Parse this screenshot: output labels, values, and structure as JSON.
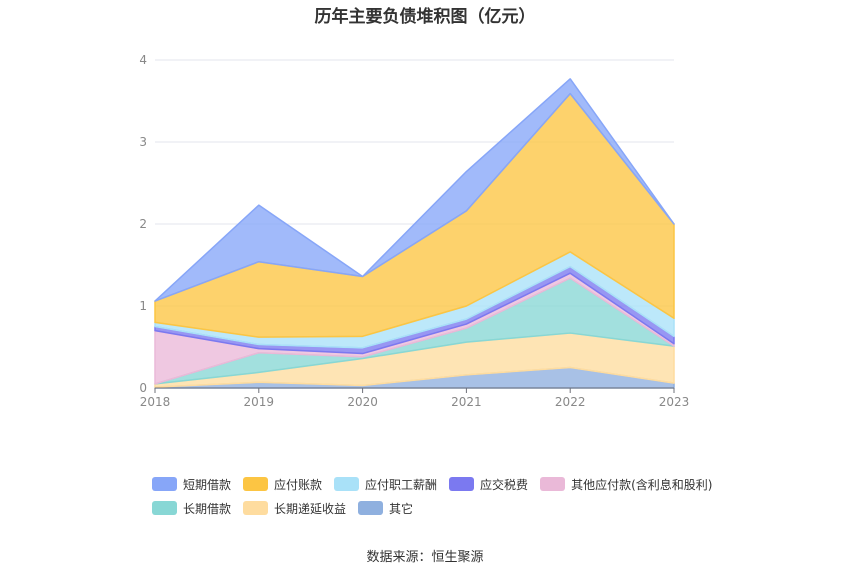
{
  "chart_data": {
    "type": "area",
    "stacked": true,
    "title": "历年主要负债堆积图（亿元）",
    "categories": [
      "2018",
      "2019",
      "2020",
      "2021",
      "2022",
      "2023"
    ],
    "ylim": [
      0,
      4
    ],
    "yticks": [
      "0",
      "1",
      "2",
      "3",
      "4"
    ],
    "grid": true,
    "legend_position": "bottom",
    "series": [
      {
        "name": "其它",
        "color": "#8fb0df",
        "values": [
          0.01,
          0.07,
          0.03,
          0.16,
          0.25,
          0.06
        ]
      },
      {
        "name": "长期递延收益",
        "color": "#fedc9f",
        "values": [
          0.04,
          0.12,
          0.33,
          0.4,
          0.42,
          0.45
        ]
      },
      {
        "name": "长期借款",
        "color": "#88d7d5",
        "values": [
          0.0,
          0.24,
          0.02,
          0.17,
          0.67,
          0.0
        ]
      },
      {
        "name": "其他应付款(含利息和股利)",
        "color": "#eab9d8",
        "values": [
          0.65,
          0.05,
          0.04,
          0.05,
          0.06,
          0.03
        ]
      },
      {
        "name": "应交税费",
        "color": "#7b79f0",
        "values": [
          0.05,
          0.05,
          0.07,
          0.06,
          0.08,
          0.09
        ]
      },
      {
        "name": "应付职工薪酬",
        "color": "#a9e1f8",
        "values": [
          0.05,
          0.09,
          0.14,
          0.16,
          0.18,
          0.22
        ]
      },
      {
        "name": "应付账款",
        "color": "#fcc543",
        "values": [
          0.26,
          0.92,
          0.73,
          1.16,
          1.93,
          1.15
        ]
      },
      {
        "name": "短期借款",
        "color": "#87a6f8",
        "values": [
          0.0,
          0.69,
          0.0,
          0.48,
          0.18,
          0.0
        ]
      }
    ]
  },
  "legend_rows": [
    [
      "短期借款",
      "应付账款",
      "应付职工薪酬",
      "应交税费",
      "其他应付款(含利息和股利)"
    ],
    [
      "长期借款",
      "长期递延收益",
      "其它"
    ]
  ],
  "legend_colors": {
    "短期借款": "#87a6f8",
    "应付账款": "#fcc543",
    "应付职工薪酬": "#a9e1f8",
    "应交税费": "#7b79f0",
    "其他应付款(含利息和股利)": "#eab9d8",
    "长期借款": "#88d7d5",
    "长期递延收益": "#fedc9f",
    "其它": "#8fb0df"
  },
  "source": "数据来源：恒生聚源"
}
